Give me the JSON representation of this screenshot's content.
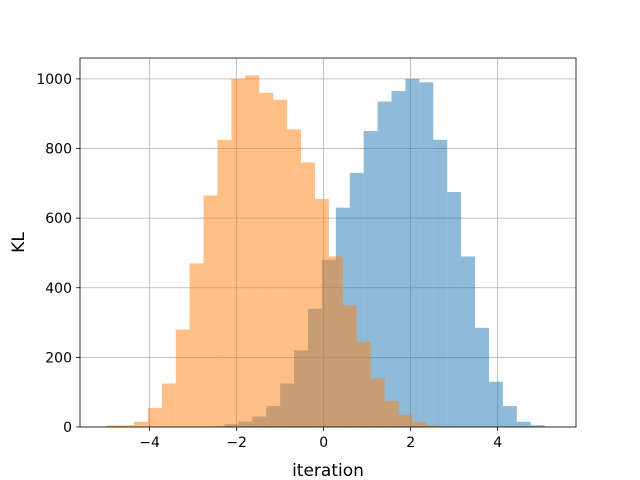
{
  "chart_data": {
    "type": "bar",
    "title": "",
    "xlabel": "iteration",
    "ylabel": "KL",
    "xlim": [
      -5.6,
      5.8
    ],
    "ylim": [
      0,
      1060
    ],
    "xticks": [
      -4,
      -2,
      0,
      2,
      4
    ],
    "yticks": [
      0,
      200,
      400,
      600,
      800,
      1000
    ],
    "xtick_labels": [
      "−4",
      "−2",
      "0",
      "2",
      "4"
    ],
    "ytick_labels": [
      "0",
      "200",
      "400",
      "600",
      "800",
      "1000"
    ],
    "grid": true,
    "legend": "none",
    "bin_width": 0.32,
    "series": [
      {
        "color": "#1f77b4",
        "opacity": 0.5,
        "bin_starts": [
          -2.6,
          -2.28,
          -1.96,
          -1.64,
          -1.32,
          -1.0,
          -0.68,
          -0.36,
          -0.04,
          0.28,
          0.6,
          0.92,
          1.24,
          1.56,
          1.88,
          2.2,
          2.52,
          2.84,
          3.16,
          3.48,
          3.8,
          4.12,
          4.44,
          4.76
        ],
        "values": [
          2,
          8,
          15,
          30,
          60,
          125,
          220,
          340,
          480,
          630,
          730,
          850,
          935,
          965,
          1000,
          990,
          825,
          675,
          490,
          285,
          130,
          60,
          15,
          5
        ]
      },
      {
        "color": "#ff7f0e",
        "opacity": 0.5,
        "bin_starts": [
          -5.0,
          -4.68,
          -4.36,
          -4.04,
          -3.72,
          -3.4,
          -3.08,
          -2.76,
          -2.44,
          -2.12,
          -1.8,
          -1.48,
          -1.16,
          -0.84,
          -0.52,
          -0.2,
          0.12,
          0.44,
          0.76,
          1.08,
          1.4,
          1.72,
          2.04,
          2.36
        ],
        "values": [
          5,
          5,
          15,
          55,
          125,
          280,
          470,
          665,
          825,
          1000,
          1010,
          960,
          940,
          855,
          760,
          655,
          490,
          350,
          245,
          140,
          75,
          35,
          15,
          5
        ]
      }
    ]
  }
}
